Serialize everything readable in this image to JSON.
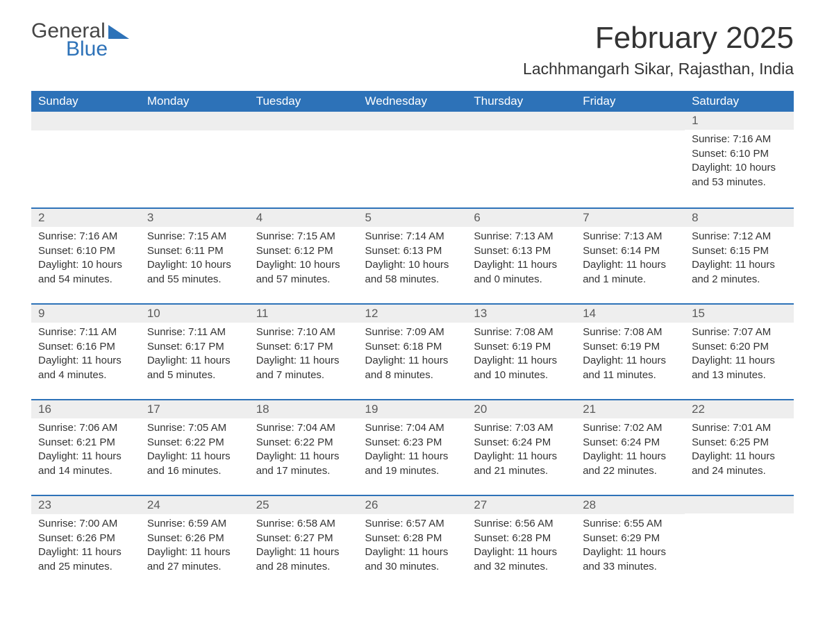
{
  "logo": {
    "text1": "General",
    "text2": "Blue"
  },
  "header": {
    "month_title": "February 2025",
    "location": "Lachhmangarh Sikar, Rajasthan, India"
  },
  "calendar": {
    "day_headers": [
      "Sunday",
      "Monday",
      "Tuesday",
      "Wednesday",
      "Thursday",
      "Friday",
      "Saturday"
    ],
    "colors": {
      "header_bg": "#2d72b8",
      "header_text": "#ffffff",
      "daynum_bg": "#eeeeee",
      "row_divider": "#2d72b8",
      "body_text": "#333333",
      "daynum_text": "#5a5a5a"
    },
    "font": {
      "header_size_pt": 13,
      "daynum_size_pt": 13,
      "body_size_pt": 11
    },
    "weeks": [
      [
        null,
        null,
        null,
        null,
        null,
        null,
        {
          "n": "1",
          "sunrise": "Sunrise: 7:16 AM",
          "sunset": "Sunset: 6:10 PM",
          "daylight": "Daylight: 10 hours and 53 minutes."
        }
      ],
      [
        {
          "n": "2",
          "sunrise": "Sunrise: 7:16 AM",
          "sunset": "Sunset: 6:10 PM",
          "daylight": "Daylight: 10 hours and 54 minutes."
        },
        {
          "n": "3",
          "sunrise": "Sunrise: 7:15 AM",
          "sunset": "Sunset: 6:11 PM",
          "daylight": "Daylight: 10 hours and 55 minutes."
        },
        {
          "n": "4",
          "sunrise": "Sunrise: 7:15 AM",
          "sunset": "Sunset: 6:12 PM",
          "daylight": "Daylight: 10 hours and 57 minutes."
        },
        {
          "n": "5",
          "sunrise": "Sunrise: 7:14 AM",
          "sunset": "Sunset: 6:13 PM",
          "daylight": "Daylight: 10 hours and 58 minutes."
        },
        {
          "n": "6",
          "sunrise": "Sunrise: 7:13 AM",
          "sunset": "Sunset: 6:13 PM",
          "daylight": "Daylight: 11 hours and 0 minutes."
        },
        {
          "n": "7",
          "sunrise": "Sunrise: 7:13 AM",
          "sunset": "Sunset: 6:14 PM",
          "daylight": "Daylight: 11 hours and 1 minute."
        },
        {
          "n": "8",
          "sunrise": "Sunrise: 7:12 AM",
          "sunset": "Sunset: 6:15 PM",
          "daylight": "Daylight: 11 hours and 2 minutes."
        }
      ],
      [
        {
          "n": "9",
          "sunrise": "Sunrise: 7:11 AM",
          "sunset": "Sunset: 6:16 PM",
          "daylight": "Daylight: 11 hours and 4 minutes."
        },
        {
          "n": "10",
          "sunrise": "Sunrise: 7:11 AM",
          "sunset": "Sunset: 6:17 PM",
          "daylight": "Daylight: 11 hours and 5 minutes."
        },
        {
          "n": "11",
          "sunrise": "Sunrise: 7:10 AM",
          "sunset": "Sunset: 6:17 PM",
          "daylight": "Daylight: 11 hours and 7 minutes."
        },
        {
          "n": "12",
          "sunrise": "Sunrise: 7:09 AM",
          "sunset": "Sunset: 6:18 PM",
          "daylight": "Daylight: 11 hours and 8 minutes."
        },
        {
          "n": "13",
          "sunrise": "Sunrise: 7:08 AM",
          "sunset": "Sunset: 6:19 PM",
          "daylight": "Daylight: 11 hours and 10 minutes."
        },
        {
          "n": "14",
          "sunrise": "Sunrise: 7:08 AM",
          "sunset": "Sunset: 6:19 PM",
          "daylight": "Daylight: 11 hours and 11 minutes."
        },
        {
          "n": "15",
          "sunrise": "Sunrise: 7:07 AM",
          "sunset": "Sunset: 6:20 PM",
          "daylight": "Daylight: 11 hours and 13 minutes."
        }
      ],
      [
        {
          "n": "16",
          "sunrise": "Sunrise: 7:06 AM",
          "sunset": "Sunset: 6:21 PM",
          "daylight": "Daylight: 11 hours and 14 minutes."
        },
        {
          "n": "17",
          "sunrise": "Sunrise: 7:05 AM",
          "sunset": "Sunset: 6:22 PM",
          "daylight": "Daylight: 11 hours and 16 minutes."
        },
        {
          "n": "18",
          "sunrise": "Sunrise: 7:04 AM",
          "sunset": "Sunset: 6:22 PM",
          "daylight": "Daylight: 11 hours and 17 minutes."
        },
        {
          "n": "19",
          "sunrise": "Sunrise: 7:04 AM",
          "sunset": "Sunset: 6:23 PM",
          "daylight": "Daylight: 11 hours and 19 minutes."
        },
        {
          "n": "20",
          "sunrise": "Sunrise: 7:03 AM",
          "sunset": "Sunset: 6:24 PM",
          "daylight": "Daylight: 11 hours and 21 minutes."
        },
        {
          "n": "21",
          "sunrise": "Sunrise: 7:02 AM",
          "sunset": "Sunset: 6:24 PM",
          "daylight": "Daylight: 11 hours and 22 minutes."
        },
        {
          "n": "22",
          "sunrise": "Sunrise: 7:01 AM",
          "sunset": "Sunset: 6:25 PM",
          "daylight": "Daylight: 11 hours and 24 minutes."
        }
      ],
      [
        {
          "n": "23",
          "sunrise": "Sunrise: 7:00 AM",
          "sunset": "Sunset: 6:26 PM",
          "daylight": "Daylight: 11 hours and 25 minutes."
        },
        {
          "n": "24",
          "sunrise": "Sunrise: 6:59 AM",
          "sunset": "Sunset: 6:26 PM",
          "daylight": "Daylight: 11 hours and 27 minutes."
        },
        {
          "n": "25",
          "sunrise": "Sunrise: 6:58 AM",
          "sunset": "Sunset: 6:27 PM",
          "daylight": "Daylight: 11 hours and 28 minutes."
        },
        {
          "n": "26",
          "sunrise": "Sunrise: 6:57 AM",
          "sunset": "Sunset: 6:28 PM",
          "daylight": "Daylight: 11 hours and 30 minutes."
        },
        {
          "n": "27",
          "sunrise": "Sunrise: 6:56 AM",
          "sunset": "Sunset: 6:28 PM",
          "daylight": "Daylight: 11 hours and 32 minutes."
        },
        {
          "n": "28",
          "sunrise": "Sunrise: 6:55 AM",
          "sunset": "Sunset: 6:29 PM",
          "daylight": "Daylight: 11 hours and 33 minutes."
        },
        null
      ]
    ]
  }
}
